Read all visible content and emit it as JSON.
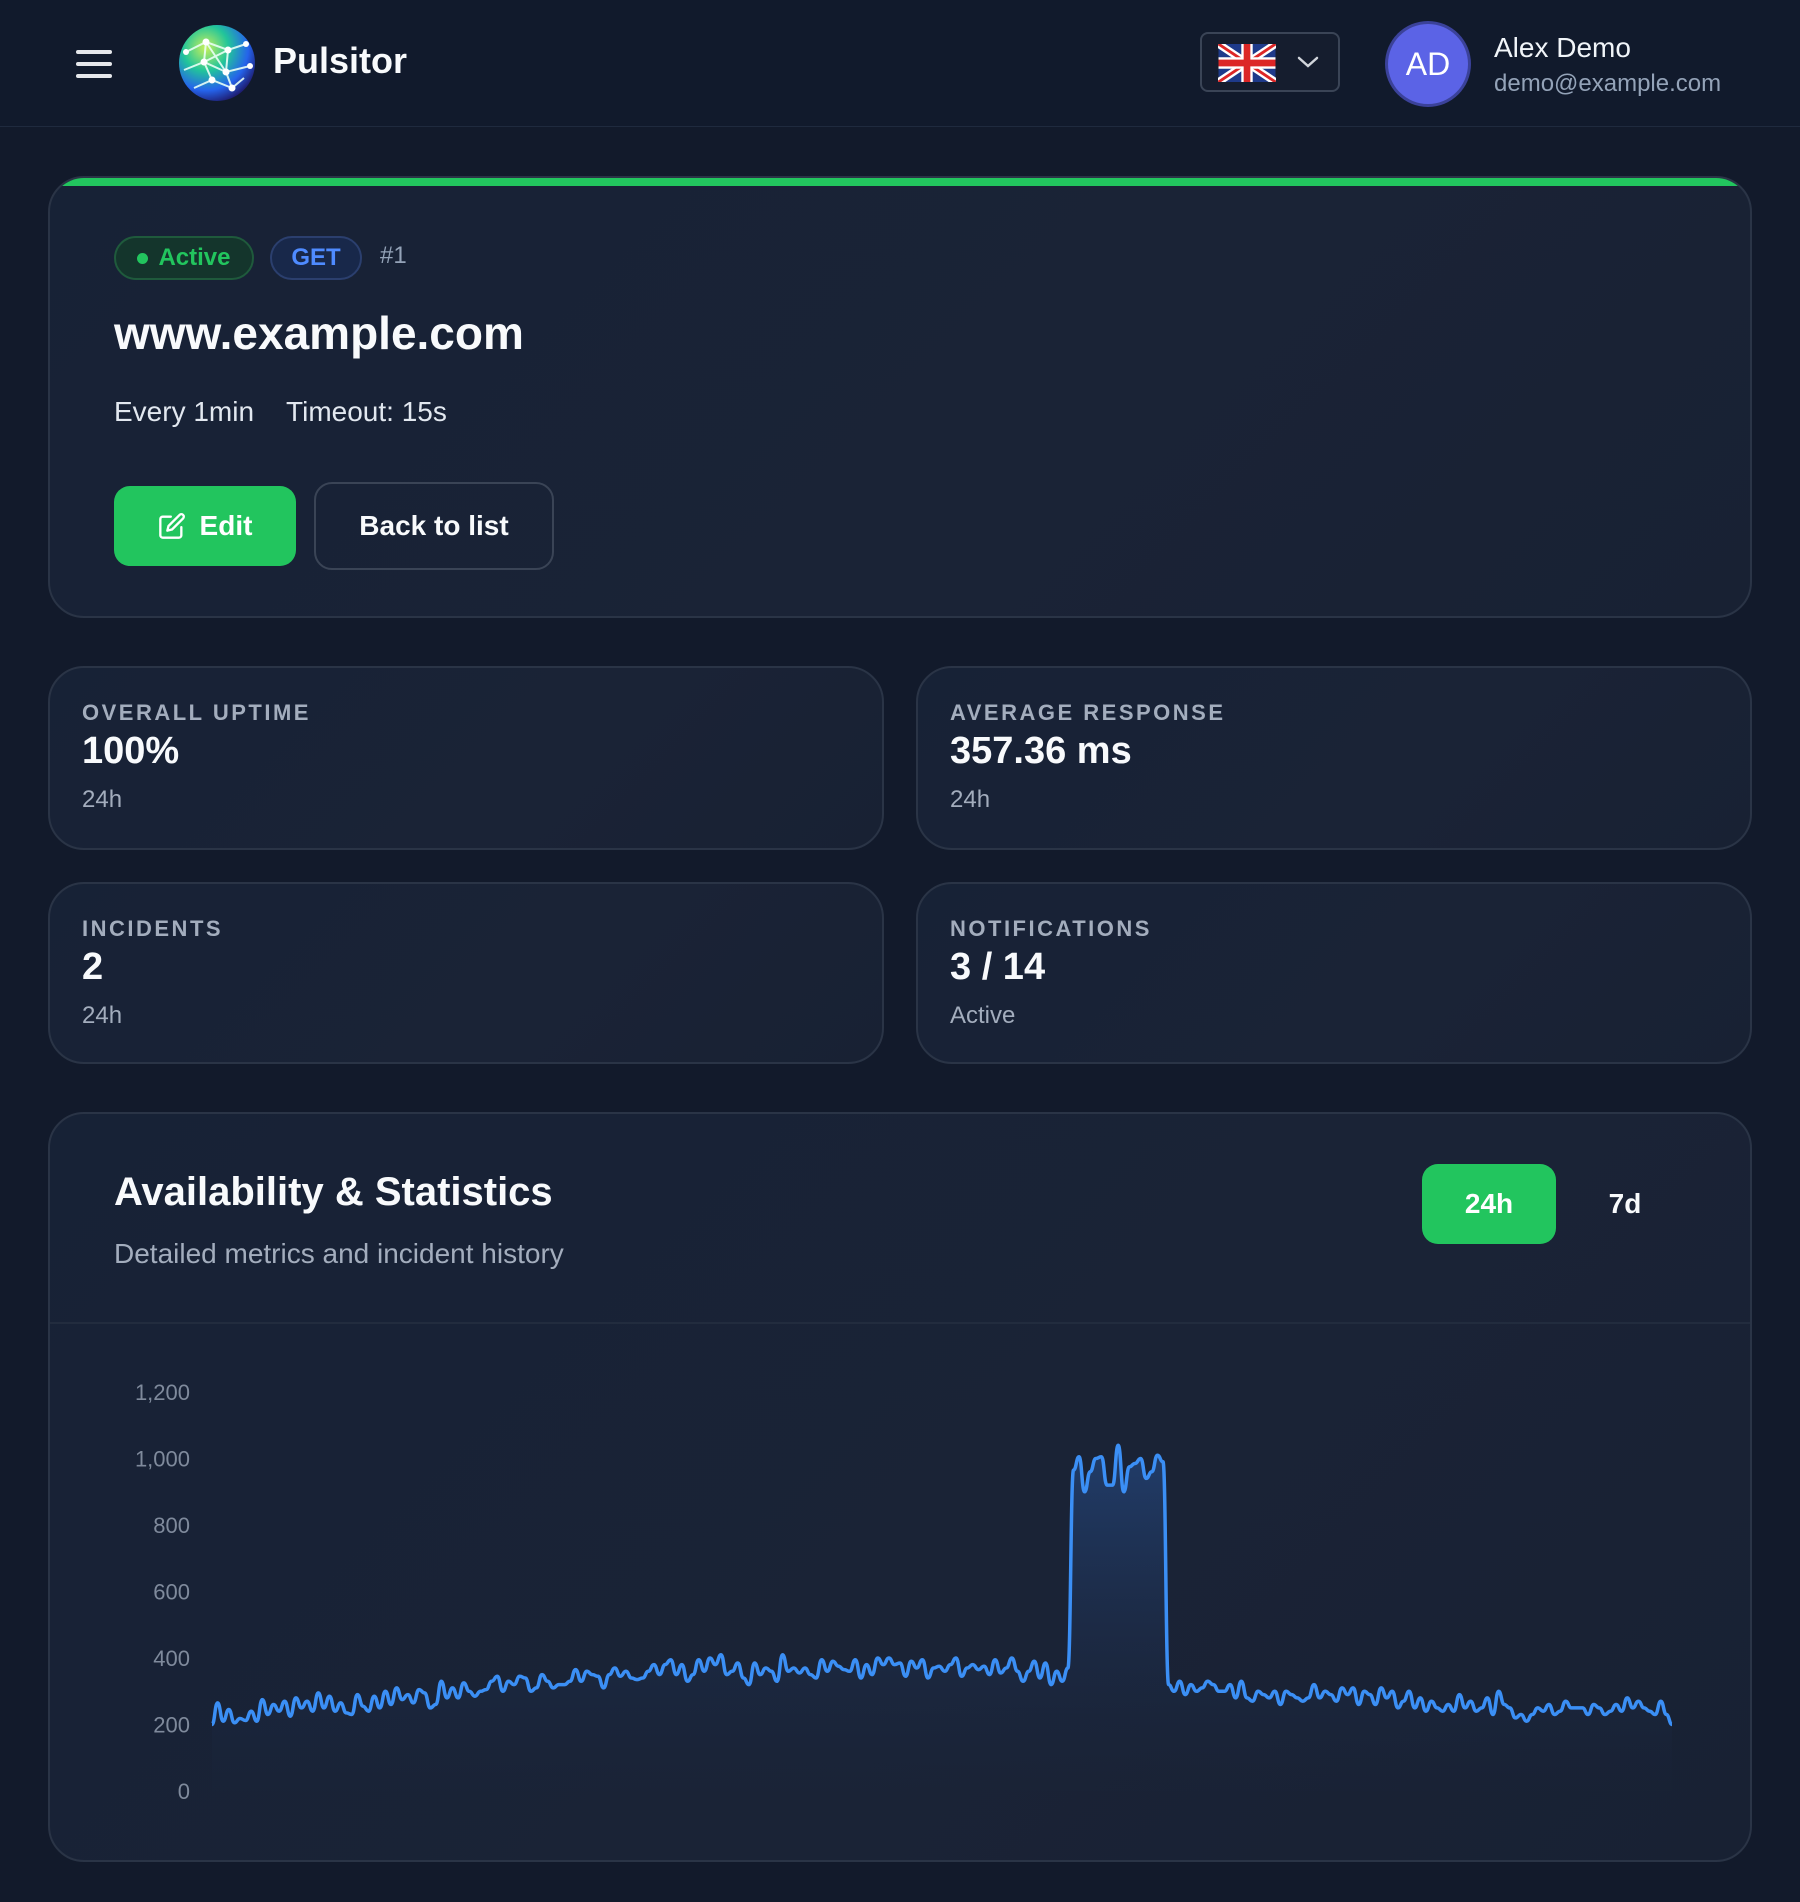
{
  "header": {
    "app_name": "Pulsitor",
    "language": "en-GB",
    "user": {
      "initials": "AD",
      "name": "Alex Demo",
      "email": "demo@example.com"
    }
  },
  "monitor": {
    "status": "Active",
    "method": "GET",
    "id": "#1",
    "url": "www.example.com",
    "interval": "Every 1min",
    "timeout": "Timeout: 15s",
    "edit_label": "Edit",
    "back_label": "Back to list",
    "accent_color": "#22c55e"
  },
  "stats": [
    {
      "label": "OVERALL UPTIME",
      "value": "100%",
      "sub": "24h"
    },
    {
      "label": "AVERAGE RESPONSE",
      "value": "357.36 ms",
      "sub": "24h"
    },
    {
      "label": "INCIDENTS",
      "value": "2",
      "sub": "24h"
    },
    {
      "label": "NOTIFICATIONS",
      "value": "3 / 14",
      "sub": "Active"
    }
  ],
  "availability": {
    "title": "Availability & Statistics",
    "subtitle": "Detailed metrics and incident history",
    "ranges": [
      "24h",
      "7d"
    ],
    "selected_range": "24h"
  },
  "chart_data": {
    "type": "area",
    "ylim": [
      0,
      1200
    ],
    "y_ticks": [
      "0",
      "200",
      "400",
      "600",
      "800",
      "1,000",
      "1,200"
    ],
    "y_tick_values": [
      0,
      200,
      400,
      600,
      800,
      1000,
      1200
    ],
    "line_color": "#3b8ff5",
    "grid": false,
    "values": [
      200,
      265,
      210,
      245,
      205,
      218,
      212,
      240,
      210,
      275,
      230,
      260,
      240,
      270,
      225,
      280,
      250,
      270,
      240,
      295,
      250,
      285,
      240,
      265,
      235,
      230,
      290,
      255,
      240,
      285,
      250,
      300,
      260,
      310,
      275,
      290,
      265,
      305,
      295,
      250,
      260,
      330,
      280,
      310,
      280,
      325,
      300,
      285,
      300,
      305,
      330,
      345,
      300,
      330,
      320,
      345,
      340,
      300,
      310,
      350,
      330,
      310,
      320,
      320,
      330,
      365,
      330,
      360,
      350,
      345,
      310,
      350,
      370,
      345,
      360,
      340,
      335,
      340,
      360,
      380,
      350,
      380,
      395,
      350,
      380,
      330,
      350,
      395,
      360,
      400,
      380,
      410,
      350,
      360,
      385,
      340,
      320,
      385,
      350,
      370,
      360,
      330,
      410,
      360,
      370,
      355,
      370,
      350,
      340,
      395,
      360,
      390,
      375,
      365,
      360,
      395,
      340,
      380,
      350,
      400,
      380,
      400,
      380,
      385,
      345,
      390,
      370,
      395,
      340,
      370,
      375,
      360,
      380,
      400,
      345,
      370,
      380,
      365,
      375,
      350,
      395,
      355,
      370,
      400,
      360,
      330,
      360,
      390,
      340,
      385,
      320,
      360,
      330,
      370,
      965,
      1005,
      900,
      960,
      1000,
      1005,
      920,
      920,
      1040,
      900,
      975,
      985,
      1000,
      940,
      960,
      1010,
      990,
      320,
      300,
      330,
      290,
      320,
      300,
      310,
      330,
      320,
      300,
      300,
      320,
      280,
      330,
      280,
      270,
      300,
      290,
      280,
      300,
      260,
      300,
      290,
      280,
      270,
      280,
      320,
      280,
      300,
      290,
      270,
      310,
      290,
      310,
      260,
      300,
      290,
      260,
      310,
      280,
      300,
      250,
      270,
      300,
      250,
      280,
      240,
      270,
      250,
      240,
      260,
      240,
      290,
      250,
      270,
      240,
      250,
      280,
      230,
      300,
      260,
      250,
      220,
      230,
      210,
      230,
      250,
      240,
      260,
      230,
      240,
      270,
      250,
      250,
      250,
      230,
      260,
      250,
      230,
      240,
      260,
      240,
      280,
      250,
      270,
      250,
      240,
      230,
      270,
      230,
      200
    ]
  }
}
